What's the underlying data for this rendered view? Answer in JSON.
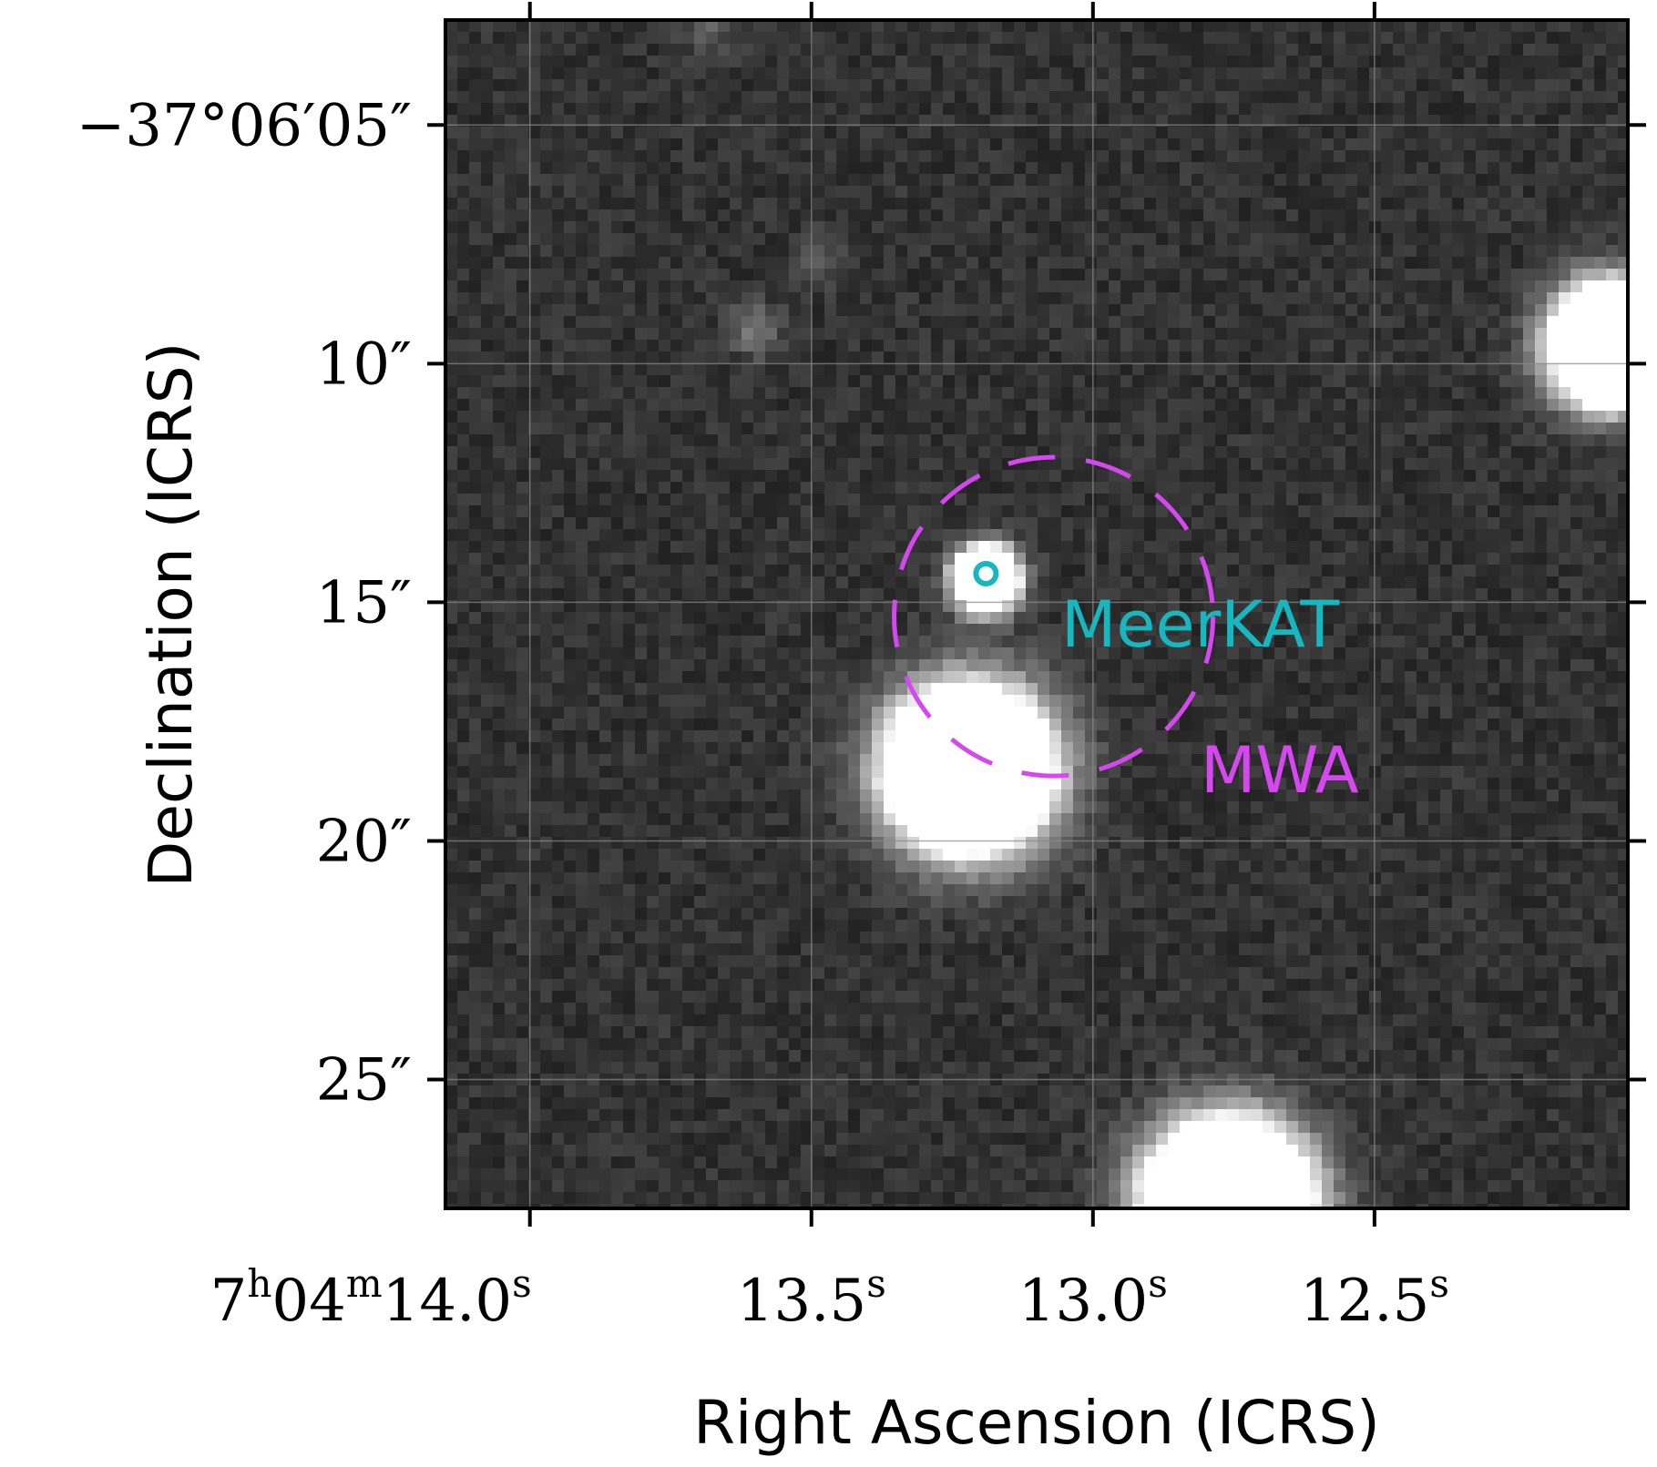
{
  "figure": {
    "xlabel": "Right Ascension (ICRS)",
    "ylabel": "Declination (ICRS)",
    "x_ticks": [
      {
        "ra_sec": 14.0,
        "parts": [
          {
            "t": "7",
            "sup": false
          },
          {
            "t": "h",
            "sup": true
          },
          {
            "t": "04",
            "sup": false
          },
          {
            "t": "m",
            "sup": true
          },
          {
            "t": "14.0",
            "sup": false
          },
          {
            "t": "s",
            "sup": true
          }
        ]
      },
      {
        "ra_sec": 13.5,
        "parts": [
          {
            "t": "13.5",
            "sup": false
          },
          {
            "t": "s",
            "sup": true
          }
        ]
      },
      {
        "ra_sec": 13.0,
        "parts": [
          {
            "t": "13.0",
            "sup": false
          },
          {
            "t": "s",
            "sup": true
          }
        ]
      },
      {
        "ra_sec": 12.5,
        "parts": [
          {
            "t": "12.5",
            "sup": false
          },
          {
            "t": "s",
            "sup": true
          }
        ]
      }
    ],
    "y_ticks": [
      {
        "dec_arcsec": 5,
        "label": "−37°06′05″"
      },
      {
        "dec_arcsec": 10,
        "label": "10″"
      },
      {
        "dec_arcsec": 15,
        "label": "15″"
      },
      {
        "dec_arcsec": 20,
        "label": "20″"
      },
      {
        "dec_arcsec": 25,
        "label": "25″"
      }
    ],
    "ra_range_sec": [
      14.15,
      12.05
    ],
    "dec_range_arcsec": [
      2.8,
      27.7
    ],
    "grid": true,
    "colormap": "grayscale",
    "colors": {
      "meerkat": "#17b7c0",
      "mwa": "#d548f0",
      "grid": "#8a8a8a"
    },
    "markers": [
      {
        "id": "meerkat",
        "label": "MeerKAT",
        "ra_sec": 13.19,
        "dec_arcsec": 14.4,
        "style": "solid-circle"
      },
      {
        "id": "mwa",
        "label": "MWA",
        "ra_sec": 13.07,
        "dec_arcsec": 15.3,
        "style": "dashed-circle"
      }
    ],
    "sources": [
      {
        "ra_sec": 13.68,
        "dec_arcsec": 2.9,
        "brightness": 0.3,
        "kind": "faint"
      },
      {
        "ra_sec": 13.48,
        "dec_arcsec": 7.8,
        "brightness": 0.22,
        "kind": "faint"
      },
      {
        "ra_sec": 13.6,
        "dec_arcsec": 9.3,
        "brightness": 0.42,
        "kind": "faint"
      },
      {
        "ra_sec": 13.19,
        "dec_arcsec": 14.5,
        "brightness": 0.85,
        "kind": "compact"
      },
      {
        "ra_sec": 13.22,
        "dec_arcsec": 18.5,
        "brightness": 1.0,
        "kind": "bright"
      },
      {
        "ra_sec": 12.76,
        "dec_arcsec": 27.6,
        "brightness": 1.0,
        "kind": "bright"
      },
      {
        "ra_sec": 12.08,
        "dec_arcsec": 9.6,
        "brightness": 1.0,
        "kind": "edge"
      }
    ]
  }
}
